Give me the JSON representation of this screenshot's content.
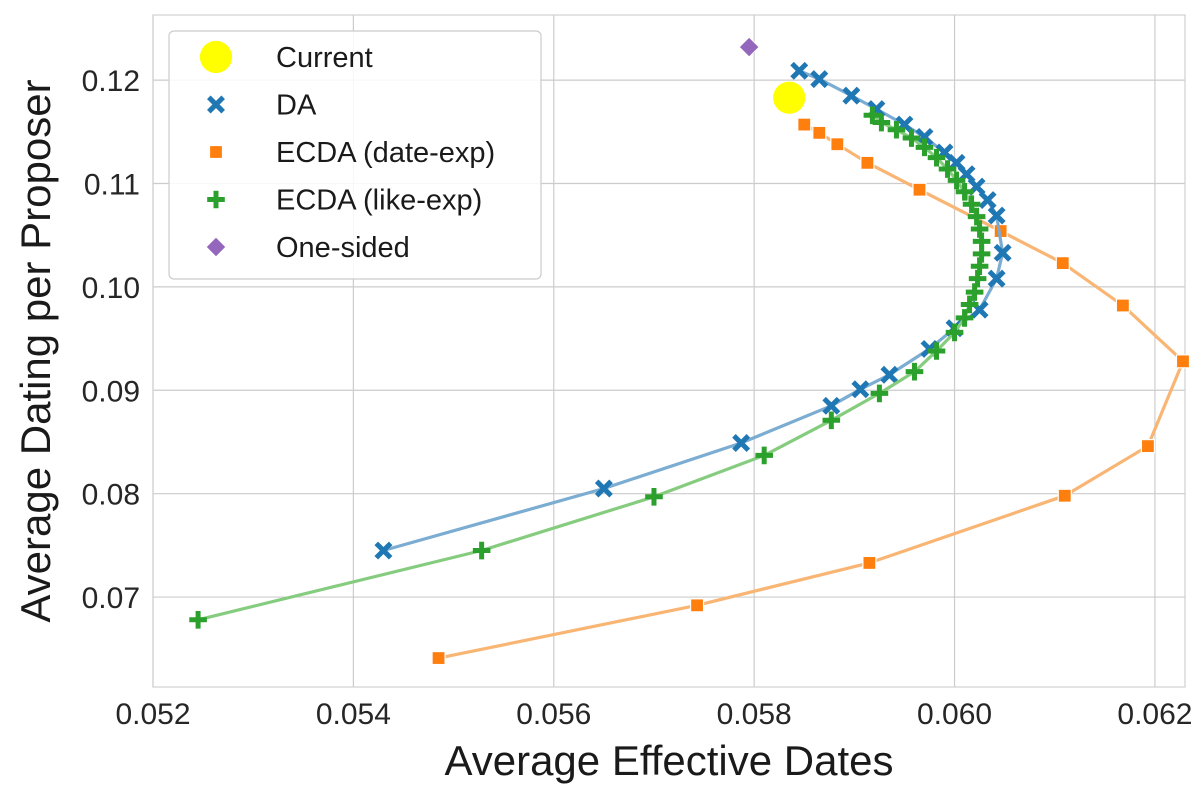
{
  "chart_data": {
    "type": "line",
    "title": "",
    "xlabel": "Average Effective Dates",
    "ylabel": "Average Dating per Proposer",
    "xlim": [
      0.052,
      0.0623
    ],
    "ylim": [
      0.0613,
      0.1263
    ],
    "xticks": [
      0.052,
      0.054,
      0.056,
      0.058,
      0.06,
      0.062
    ],
    "xtick_labels": [
      "0.052",
      "0.054",
      "0.056",
      "0.058",
      "0.060",
      "0.062"
    ],
    "yticks": [
      0.07,
      0.08,
      0.09,
      0.1,
      0.11,
      0.12
    ],
    "ytick_labels": [
      "0.07",
      "0.08",
      "0.09",
      "0.10",
      "0.11",
      "0.12"
    ],
    "grid": true,
    "legend_position": "top-left",
    "series": [
      {
        "name": "Current",
        "marker": "circle",
        "line": false,
        "color": "#FFFF00",
        "points": [
          [
            0.05835,
            0.1183
          ]
        ]
      },
      {
        "name": "DA",
        "marker": "x",
        "line": true,
        "color": "#1f77b4",
        "line_color": "#7bacd2",
        "points": [
          [
            0.0543,
            0.0745
          ],
          [
            0.0565,
            0.0805
          ],
          [
            0.05787,
            0.0849
          ],
          [
            0.05877,
            0.0885
          ],
          [
            0.05906,
            0.0901
          ],
          [
            0.05935,
            0.0915
          ],
          [
            0.05975,
            0.094
          ],
          [
            0.06,
            0.096
          ],
          [
            0.06025,
            0.0978
          ],
          [
            0.06042,
            0.1008
          ],
          [
            0.06048,
            0.1033
          ],
          [
            0.06042,
            0.1069
          ],
          [
            0.06033,
            0.1084
          ],
          [
            0.06022,
            0.1097
          ],
          [
            0.06012,
            0.1109
          ],
          [
            0.06002,
            0.112
          ],
          [
            0.0599,
            0.113
          ],
          [
            0.0597,
            0.1145
          ],
          [
            0.0595,
            0.1157
          ],
          [
            0.05922,
            0.1172
          ],
          [
            0.05897,
            0.1185
          ],
          [
            0.05865,
            0.1201
          ],
          [
            0.05845,
            0.1209
          ]
        ]
      },
      {
        "name": "ECDA (date-exp)",
        "marker": "square",
        "line": true,
        "color": "#ff7f0e",
        "line_color": "#f9b573",
        "points": [
          [
            0.05485,
            0.0641
          ],
          [
            0.05743,
            0.0692
          ],
          [
            0.05915,
            0.0733
          ],
          [
            0.0611,
            0.0798
          ],
          [
            0.06193,
            0.0846
          ],
          [
            0.06228,
            0.0928
          ],
          [
            0.06168,
            0.0982
          ],
          [
            0.06108,
            0.1023
          ],
          [
            0.06046,
            0.1054
          ],
          [
            0.05965,
            0.1094
          ],
          [
            0.05913,
            0.112
          ],
          [
            0.05883,
            0.1138
          ],
          [
            0.05865,
            0.1149
          ],
          [
            0.0585,
            0.1157
          ]
        ]
      },
      {
        "name": "ECDA (like-exp)",
        "marker": "plus",
        "line": true,
        "color": "#2ca02c",
        "line_color": "#85cc7f",
        "points": [
          [
            0.05245,
            0.0678
          ],
          [
            0.05528,
            0.0745
          ],
          [
            0.057,
            0.0797
          ],
          [
            0.0581,
            0.0837
          ],
          [
            0.05877,
            0.0871
          ],
          [
            0.05925,
            0.0897
          ],
          [
            0.0596,
            0.0918
          ],
          [
            0.05982,
            0.0938
          ],
          [
            0.06,
            0.0956
          ],
          [
            0.0601,
            0.097
          ],
          [
            0.06015,
            0.0983
          ],
          [
            0.0602,
            0.0995
          ],
          [
            0.06023,
            0.1008
          ],
          [
            0.06025,
            0.102
          ],
          [
            0.06027,
            0.1032
          ],
          [
            0.06027,
            0.1044
          ],
          [
            0.06025,
            0.1056
          ],
          [
            0.06022,
            0.1068
          ],
          [
            0.06017,
            0.108
          ],
          [
            0.0601,
            0.1092
          ],
          [
            0.06002,
            0.1103
          ],
          [
            0.05993,
            0.1114
          ],
          [
            0.05982,
            0.1125
          ],
          [
            0.0597,
            0.1135
          ],
          [
            0.05957,
            0.1144
          ],
          [
            0.05942,
            0.1152
          ],
          [
            0.05927,
            0.1159
          ],
          [
            0.05918,
            0.1166
          ]
        ]
      },
      {
        "name": "One-sided",
        "marker": "diamond",
        "line": false,
        "color": "#9467bd",
        "points": [
          [
            0.05795,
            0.1232
          ]
        ]
      }
    ]
  }
}
